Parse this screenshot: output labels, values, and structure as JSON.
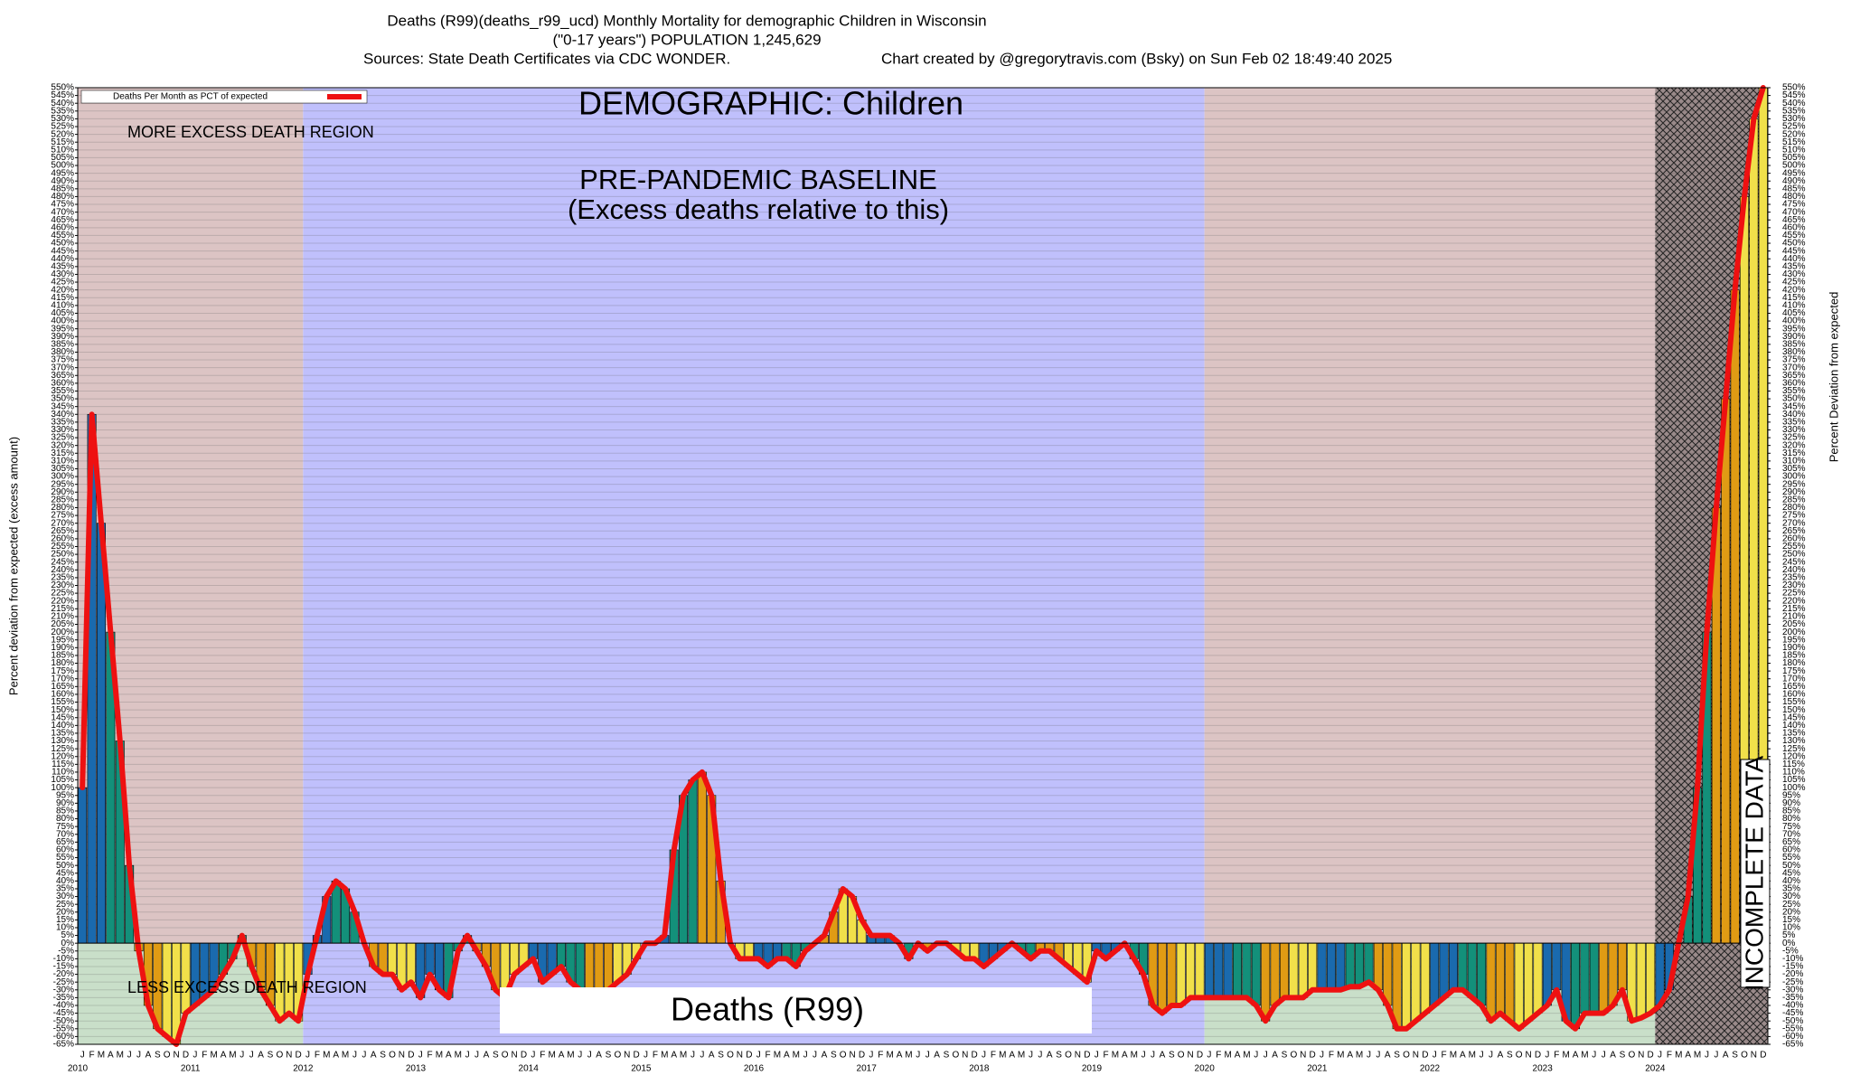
{
  "chart_data": {
    "type": "bar",
    "title": "Deaths (R99)(deaths_r99_ucd) Monthly Mortality for demographic Children in Wisconsin",
    "subtitle": "(\"0-17 years\") POPULATION 1,245,629",
    "source": "Sources: State Death Certificates via CDC WONDER.",
    "credit": "Chart created by @gregorytravis.com (Bsky) on Sun Feb 02 18:49:40 2025",
    "y_label": "Percent deviation from expected (excess amount)",
    "y2_label": "Percent Deviation from expected",
    "annotations": {
      "demographic": "DEMOGRAPHIC: Children",
      "baseline_1": "PRE-PANDEMIC BASELINE",
      "baseline_2": "(Excess deaths relative to this)",
      "more": "MORE EXCESS DEATH REGION",
      "less": "LESS EXCESS DEATH REGION",
      "cause": "Deaths (R99)",
      "incomplete": "INCOMPLETE DATA"
    },
    "month_letters": [
      "J",
      "F",
      "M",
      "A",
      "M",
      "J",
      "J",
      "A",
      "S",
      "O",
      "N",
      "D"
    ],
    "years": [
      "2010",
      "2011",
      "2012",
      "2013",
      "2014",
      "2015",
      "2016",
      "2017",
      "2018",
      "2019",
      "2020",
      "2021",
      "2022",
      "2023",
      "2024"
    ],
    "bar_colors": [
      "#1a6aae",
      "#13907a",
      "#e09b14",
      "#f1e04a"
    ],
    "series": [
      {
        "name": "Deaths Per Month as PCT of expected",
        "color": "#ee1111",
        "values": [
          100,
          340,
          270,
          200,
          130,
          50,
          -5,
          -40,
          -55,
          -60,
          -65,
          -45,
          -40,
          -35,
          -30,
          -20,
          -10,
          5,
          -15,
          -30,
          -40,
          -50,
          -45,
          -50,
          -20,
          5,
          30,
          40,
          35,
          20,
          0,
          -15,
          -20,
          -20,
          -30,
          -25,
          -35,
          -20,
          -30,
          -35,
          -5,
          5,
          -5,
          -15,
          -30,
          -35,
          -20,
          -15,
          -10,
          -25,
          -20,
          -15,
          -25,
          -30,
          -35,
          -35,
          -30,
          -25,
          -20,
          -10,
          0,
          0,
          5,
          60,
          95,
          105,
          110,
          95,
          40,
          0,
          -10,
          -10,
          -10,
          -15,
          -10,
          -10,
          -15,
          -5,
          0,
          5,
          20,
          35,
          30,
          15,
          5,
          5,
          5,
          0,
          -10,
          0,
          -5,
          0,
          0,
          -5,
          -10,
          -10,
          -15,
          -10,
          -5,
          0,
          -5,
          -10,
          -5,
          -5,
          -10,
          -15,
          -20,
          -25,
          -5,
          -10,
          -5,
          0,
          -10,
          -20,
          -40,
          -45,
          -40,
          -40,
          -35,
          -35,
          -35,
          -35,
          -35,
          -35,
          -35,
          -40,
          -50,
          -40,
          -35,
          -35,
          -35,
          -30,
          -30,
          -30,
          -30,
          -28,
          -28,
          -25,
          -30,
          -40,
          -55,
          -55,
          -50,
          -45,
          -40,
          -35,
          -30,
          -30,
          -35,
          -40,
          -50,
          -45,
          -50,
          -55,
          -50,
          -45,
          -40,
          -30,
          -50,
          -55,
          -45,
          -45,
          -45,
          -40,
          -30,
          -50,
          -48,
          -45,
          -40,
          -30,
          0,
          30,
          100,
          200,
          280,
          350,
          420,
          480,
          530,
          550
        ]
      }
    ],
    "ylim": [
      -65,
      550
    ],
    "yticks": [
      {
        "value": -65,
        "label": "-65%"
      },
      {
        "value": -60,
        "label": "-60%"
      },
      {
        "value": -55,
        "label": "-55%"
      },
      {
        "value": -50,
        "label": "-50%"
      },
      {
        "value": -45,
        "label": "-45%"
      },
      {
        "value": -40,
        "label": "-40%"
      },
      {
        "value": -35,
        "label": "-35%"
      },
      {
        "value": -30,
        "label": "-30%"
      },
      {
        "value": -25,
        "label": "-25%"
      },
      {
        "value": -20,
        "label": "-20%"
      },
      {
        "value": -15,
        "label": "-15%"
      },
      {
        "value": -10,
        "label": "-10%"
      },
      {
        "value": -5,
        "label": "-5%"
      },
      {
        "value": 0,
        "label": "0%"
      },
      {
        "value": 5,
        "label": "5%"
      },
      {
        "value": 10,
        "label": "10%"
      },
      {
        "value": 15,
        "label": "15%"
      },
      {
        "value": 20,
        "label": "20%"
      },
      {
        "value": 25,
        "label": "25%"
      },
      {
        "value": 30,
        "label": "30%"
      },
      {
        "value": 35,
        "label": "35%"
      },
      {
        "value": 40,
        "label": "40%"
      },
      {
        "value": 45,
        "label": "45%"
      },
      {
        "value": 50,
        "label": "50%"
      },
      {
        "value": 55,
        "label": "55%"
      },
      {
        "value": 60,
        "label": "60%"
      },
      {
        "value": 65,
        "label": "65%"
      },
      {
        "value": 70,
        "label": "70%"
      },
      {
        "value": 75,
        "label": "75%"
      },
      {
        "value": 80,
        "label": "80%"
      },
      {
        "value": 85,
        "label": "85%"
      },
      {
        "value": 90,
        "label": "90%"
      },
      {
        "value": 95,
        "label": "95%"
      },
      {
        "value": 100,
        "label": "100%"
      },
      {
        "value": 105,
        "label": "105%"
      },
      {
        "value": 110,
        "label": "110%"
      },
      {
        "value": 115,
        "label": "115%"
      },
      {
        "value": 120,
        "label": "120%"
      },
      {
        "value": 125,
        "label": "125%"
      },
      {
        "value": 130,
        "label": "130%"
      },
      {
        "value": 135,
        "label": "135%"
      },
      {
        "value": 140,
        "label": "140%"
      },
      {
        "value": 145,
        "label": "145%"
      },
      {
        "value": 150,
        "label": "150%"
      },
      {
        "value": 155,
        "label": "155%"
      },
      {
        "value": 160,
        "label": "160%"
      },
      {
        "value": 165,
        "label": "165%"
      },
      {
        "value": 170,
        "label": "170%"
      },
      {
        "value": 175,
        "label": "175%"
      },
      {
        "value": 180,
        "label": "180%"
      },
      {
        "value": 185,
        "label": "185%"
      },
      {
        "value": 190,
        "label": "190%"
      },
      {
        "value": 195,
        "label": "195%"
      },
      {
        "value": 200,
        "label": "200%"
      },
      {
        "value": 205,
        "label": "205%"
      },
      {
        "value": 210,
        "label": "210%"
      },
      {
        "value": 215,
        "label": "215%"
      },
      {
        "value": 220,
        "label": "220%"
      },
      {
        "value": 225,
        "label": "225%"
      },
      {
        "value": 230,
        "label": "230%"
      },
      {
        "value": 235,
        "label": "235%"
      },
      {
        "value": 240,
        "label": "240%"
      },
      {
        "value": 245,
        "label": "245%"
      },
      {
        "value": 250,
        "label": "250%"
      },
      {
        "value": 255,
        "label": "255%"
      },
      {
        "value": 260,
        "label": "260%"
      },
      {
        "value": 265,
        "label": "265%"
      },
      {
        "value": 270,
        "label": "270%"
      },
      {
        "value": 275,
        "label": "275%"
      },
      {
        "value": 280,
        "label": "280%"
      },
      {
        "value": 285,
        "label": "285%"
      },
      {
        "value": 290,
        "label": "290%"
      },
      {
        "value": 295,
        "label": "295%"
      },
      {
        "value": 300,
        "label": "300%"
      },
      {
        "value": 305,
        "label": "305%"
      },
      {
        "value": 310,
        "label": "310%"
      },
      {
        "value": 315,
        "label": "315%"
      },
      {
        "value": 320,
        "label": "320%"
      },
      {
        "value": 325,
        "label": "325%"
      },
      {
        "value": 330,
        "label": "330%"
      },
      {
        "value": 335,
        "label": "335%"
      },
      {
        "value": 340,
        "label": "340%"
      },
      {
        "value": 345,
        "label": "345%"
      },
      {
        "value": 350,
        "label": "350%"
      },
      {
        "value": 355,
        "label": "355%"
      },
      {
        "value": 360,
        "label": "360%"
      },
      {
        "value": 365,
        "label": "365%"
      },
      {
        "value": 370,
        "label": "370%"
      },
      {
        "value": 375,
        "label": "375%"
      },
      {
        "value": 380,
        "label": "380%"
      },
      {
        "value": 385,
        "label": "385%"
      },
      {
        "value": 390,
        "label": "390%"
      },
      {
        "value": 395,
        "label": "395%"
      },
      {
        "value": 400,
        "label": "400%"
      },
      {
        "value": 405,
        "label": "405%"
      },
      {
        "value": 410,
        "label": "410%"
      },
      {
        "value": 415,
        "label": "415%"
      },
      {
        "value": 420,
        "label": "420%"
      },
      {
        "value": 425,
        "label": "425%"
      },
      {
        "value": 430,
        "label": "430%"
      },
      {
        "value": 435,
        "label": "435%"
      },
      {
        "value": 440,
        "label": "440%"
      },
      {
        "value": 445,
        "label": "445%"
      },
      {
        "value": 450,
        "label": "450%"
      },
      {
        "value": 455,
        "label": "455%"
      },
      {
        "value": 460,
        "label": "460%"
      },
      {
        "value": 465,
        "label": "465%"
      },
      {
        "value": 470,
        "label": "470%"
      },
      {
        "value": 475,
        "label": "475%"
      },
      {
        "value": 480,
        "label": "480%"
      },
      {
        "value": 485,
        "label": "485%"
      },
      {
        "value": 490,
        "label": "490%"
      },
      {
        "value": 495,
        "label": "495%"
      },
      {
        "value": 500,
        "label": "500%"
      },
      {
        "value": 505,
        "label": "505%"
      },
      {
        "value": 510,
        "label": "510%"
      },
      {
        "value": 515,
        "label": "515%"
      },
      {
        "value": 520,
        "label": "520%"
      },
      {
        "value": 525,
        "label": "525%"
      },
      {
        "value": 530,
        "label": "530%"
      },
      {
        "value": 535,
        "label": "535%"
      },
      {
        "value": 540,
        "label": "540%"
      },
      {
        "value": 545,
        "label": "545%"
      },
      {
        "value": 550,
        "label": "550%"
      }
    ],
    "grid": true
  }
}
